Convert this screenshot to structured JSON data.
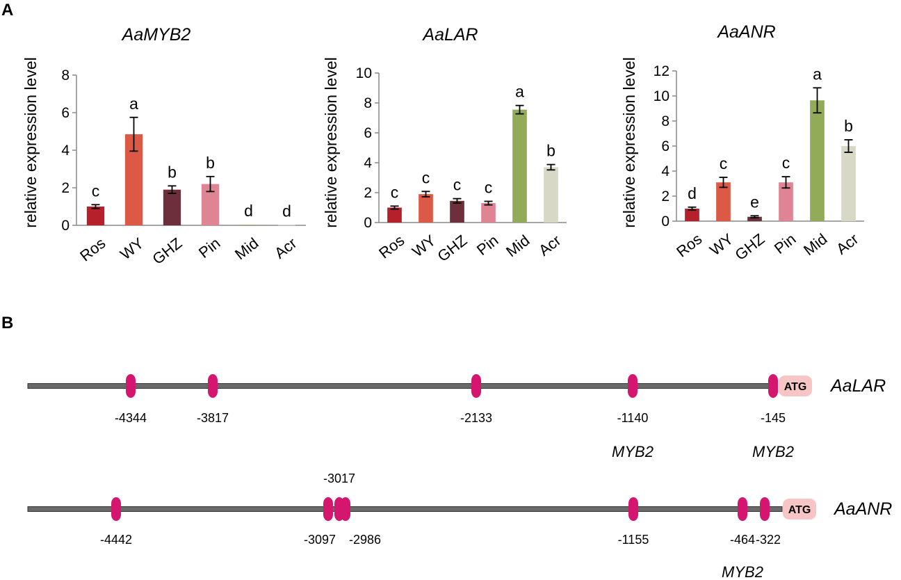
{
  "panels": {
    "a": "A",
    "b": "B"
  },
  "colors": {
    "Ros": "#b5202a",
    "WY": "#dc5a45",
    "GHZ": "#6e2f3d",
    "Pin": "#de8493",
    "Mid": "#91ab58",
    "Acr": "#d8d8c6",
    "motif": "#d4166f",
    "atg_box": "#f7c5c5",
    "line": "#555555"
  },
  "chart_data": [
    {
      "type": "bar",
      "title": "AaMYB2",
      "ylabel": "relative expression level",
      "xlabel": "",
      "categories": [
        "Ros",
        "WY",
        "GHZ",
        "Pin",
        "Mid",
        "Acr"
      ],
      "values": [
        1.0,
        4.85,
        1.9,
        2.2,
        0.03,
        0.02
      ],
      "errors": [
        0.1,
        0.9,
        0.2,
        0.4,
        0.0,
        0.0
      ],
      "significance": [
        "c",
        "a",
        "b",
        "b",
        "d",
        "d"
      ],
      "ylim": [
        0,
        8
      ],
      "yticks": [
        0,
        2,
        4,
        6,
        8
      ],
      "grid": false
    },
    {
      "type": "bar",
      "title": "AaLAR",
      "ylabel": "relative expression level",
      "xlabel": "",
      "categories": [
        "Ros",
        "WY",
        "GHZ",
        "Pin",
        "Mid",
        "Acr"
      ],
      "values": [
        1.0,
        1.9,
        1.45,
        1.3,
        7.55,
        3.7
      ],
      "errors": [
        0.1,
        0.18,
        0.15,
        0.12,
        0.28,
        0.18
      ],
      "significance": [
        "c",
        "c",
        "c",
        "c",
        "a",
        "b"
      ],
      "ylim": [
        0,
        10
      ],
      "yticks": [
        0,
        2,
        4,
        6,
        8,
        10
      ],
      "grid": false
    },
    {
      "type": "bar",
      "title": "AaANR",
      "ylabel": "relative expression level",
      "xlabel": "",
      "categories": [
        "Ros",
        "WY",
        "GHZ",
        "Pin",
        "Mid",
        "Acr"
      ],
      "values": [
        1.0,
        3.1,
        0.35,
        3.1,
        9.65,
        6.0
      ],
      "errors": [
        0.12,
        0.4,
        0.08,
        0.45,
        1.0,
        0.5
      ],
      "significance": [
        "d",
        "c",
        "e",
        "c",
        "a",
        "b"
      ],
      "ylim": [
        0,
        12
      ],
      "yticks": [
        0,
        2,
        4,
        6,
        8,
        10,
        12
      ],
      "grid": false
    }
  ],
  "promoters": [
    {
      "gene": "AaLAR",
      "atg": "ATG",
      "sites": [
        {
          "pos": "-4344",
          "motif": ""
        },
        {
          "pos": "-3817",
          "motif": ""
        },
        {
          "pos": "-2133",
          "motif": ""
        },
        {
          "pos": "-1140",
          "motif": "MYB2"
        },
        {
          "pos": "-145",
          "motif": "MYB2"
        }
      ]
    },
    {
      "gene": "AaANR",
      "atg": "ATG",
      "sites": [
        {
          "pos": "-4442",
          "motif": ""
        },
        {
          "pos": "-3097",
          "motif": ""
        },
        {
          "pos": "-3017",
          "motif": ""
        },
        {
          "pos": "-2986",
          "motif": ""
        },
        {
          "pos": "-1155",
          "motif": ""
        },
        {
          "pos": "-464",
          "motif": "MYB2"
        },
        {
          "pos": "-322",
          "motif": ""
        }
      ]
    }
  ]
}
